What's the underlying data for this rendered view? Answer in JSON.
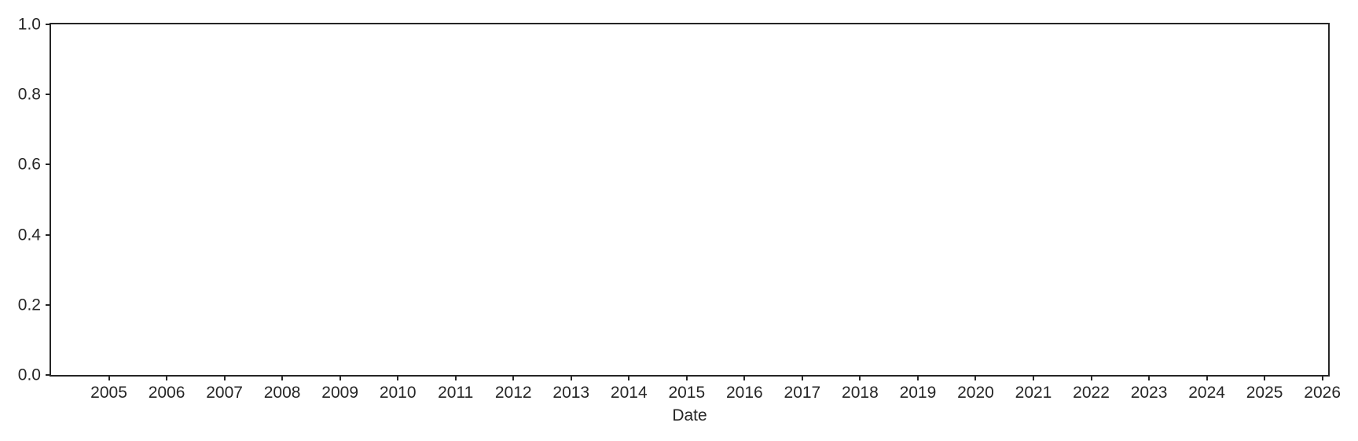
{
  "chart_data": {
    "type": "line",
    "title": "",
    "xlabel": "Date",
    "ylabel": "",
    "series": [],
    "x_tick_labels": [
      "2005",
      "2006",
      "2007",
      "2008",
      "2009",
      "2010",
      "2011",
      "2012",
      "2013",
      "2014",
      "2015",
      "2016",
      "2017",
      "2018",
      "2019",
      "2020",
      "2021",
      "2022",
      "2023",
      "2024",
      "2025",
      "2026"
    ],
    "x_tick_values": [
      2005,
      2006,
      2007,
      2008,
      2009,
      2010,
      2011,
      2012,
      2013,
      2014,
      2015,
      2016,
      2017,
      2018,
      2019,
      2020,
      2021,
      2022,
      2023,
      2024,
      2025,
      2026
    ],
    "y_tick_labels": [
      "0.0",
      "0.2",
      "0.4",
      "0.6",
      "0.8",
      "1.0"
    ],
    "y_tick_values": [
      0.0,
      0.2,
      0.4,
      0.6,
      0.8,
      1.0
    ],
    "xlim": [
      2004.0,
      2026.1
    ],
    "ylim": [
      0.0,
      1.0
    ],
    "grid": false,
    "legend": null,
    "colors": {
      "spine": "#262626",
      "text": "#262626",
      "background": "#ffffff"
    }
  }
}
